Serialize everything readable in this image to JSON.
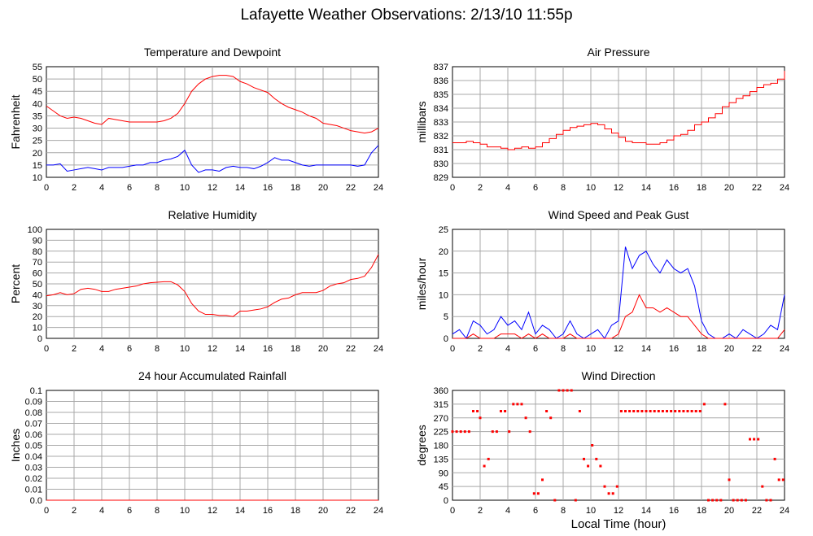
{
  "page": {
    "title": "Lafayette Weather Observations: 2/13/10 11:55p"
  },
  "colors": {
    "primary": "#ff0000",
    "secondary": "#0000ff",
    "grid": "#a8a8a8",
    "frame": "#000000"
  },
  "chart_data": [
    {
      "id": "temp",
      "type": "line",
      "title": "Temperature and Dewpoint",
      "ylabel": "Fahrenheit",
      "xlabel": "",
      "xlim": [
        0,
        24
      ],
      "xticks": [
        "0",
        "2",
        "4",
        "6",
        "8",
        "10",
        "12",
        "14",
        "16",
        "18",
        "20",
        "22",
        "24"
      ],
      "ylim": [
        10,
        55
      ],
      "yticks": [
        "10",
        "15",
        "20",
        "25",
        "30",
        "35",
        "40",
        "45",
        "50",
        "55"
      ],
      "series": [
        {
          "color": "#ff0000",
          "x": [
            0,
            0.5,
            1,
            1.5,
            2,
            2.5,
            3,
            3.5,
            4,
            4.5,
            5,
            5.5,
            6,
            6.5,
            7,
            7.5,
            8,
            8.5,
            9,
            9.5,
            10,
            10.5,
            11,
            11.5,
            12,
            12.5,
            13,
            13.5,
            14,
            14.5,
            15,
            15.5,
            16,
            16.5,
            17,
            17.5,
            18,
            18.5,
            19,
            19.5,
            20,
            20.5,
            21,
            21.5,
            22,
            22.5,
            23,
            23.5,
            24
          ],
          "y": [
            39,
            37,
            35,
            34,
            34.5,
            34,
            33,
            32,
            31.5,
            34,
            33.5,
            33,
            32.5,
            32.5,
            32.5,
            32.5,
            32.5,
            33,
            34,
            36,
            40,
            45,
            48,
            50,
            51,
            51.5,
            51.5,
            51,
            49,
            48,
            46.5,
            45.5,
            44.5,
            42,
            40,
            38.5,
            37.5,
            36.5,
            35,
            34,
            32,
            31.5,
            31,
            30,
            29,
            28.5,
            28,
            28.5,
            30
          ]
        },
        {
          "color": "#0000ff",
          "x": [
            0,
            0.5,
            1,
            1.5,
            2,
            2.5,
            3,
            3.5,
            4,
            4.5,
            5,
            5.5,
            6,
            6.5,
            7,
            7.5,
            8,
            8.5,
            9,
            9.5,
            10,
            10.5,
            11,
            11.5,
            12,
            12.5,
            13,
            13.5,
            14,
            14.5,
            15,
            15.5,
            16,
            16.5,
            17,
            17.5,
            18,
            18.5,
            19,
            19.5,
            20,
            20.5,
            21,
            21.5,
            22,
            22.5,
            23,
            23.5,
            24
          ],
          "y": [
            15,
            15,
            15.5,
            12.5,
            13,
            13.5,
            14,
            13.5,
            13,
            14,
            14,
            14,
            14.5,
            15,
            15,
            16,
            16,
            17,
            17.5,
            18.5,
            21,
            15,
            12,
            13,
            13,
            12.5,
            14,
            14.5,
            14,
            14,
            13.5,
            14.5,
            16,
            18,
            17,
            17,
            16,
            15,
            14.5,
            15,
            15,
            15,
            15,
            15,
            15,
            14.5,
            15,
            20,
            23
          ]
        }
      ]
    },
    {
      "id": "pressure",
      "type": "line",
      "title": "Air Pressure",
      "ylabel": "millibars",
      "xlabel": "",
      "xlim": [
        0,
        24
      ],
      "xticks": [
        "0",
        "2",
        "4",
        "6",
        "8",
        "10",
        "12",
        "14",
        "16",
        "18",
        "20",
        "22",
        "24"
      ],
      "ylim": [
        829,
        837
      ],
      "yticks": [
        "829",
        "830",
        "831",
        "832",
        "833",
        "834",
        "835",
        "836",
        "837"
      ],
      "series": [
        {
          "color": "#ff0000",
          "step": true,
          "x": [
            0,
            1,
            1.5,
            2,
            2.5,
            3,
            3.5,
            4,
            4.5,
            5,
            5.5,
            6,
            6.5,
            7,
            7.5,
            8,
            8.5,
            9,
            9.5,
            10,
            10.5,
            11,
            11.5,
            12,
            12.5,
            13,
            13.5,
            14,
            14.5,
            15,
            15.5,
            16,
            16.5,
            17,
            17.5,
            18,
            18.5,
            19,
            19.5,
            20,
            20.5,
            21,
            21.5,
            22,
            22.5,
            23,
            23.5,
            24
          ],
          "y": [
            831.5,
            831.6,
            831.5,
            831.4,
            831.2,
            831.2,
            831.1,
            831.0,
            831.1,
            831.2,
            831.1,
            831.2,
            831.5,
            831.8,
            832.1,
            832.4,
            832.6,
            832.7,
            832.8,
            832.9,
            832.8,
            832.5,
            832.2,
            831.9,
            831.6,
            831.5,
            831.5,
            831.4,
            831.4,
            831.5,
            831.7,
            832.0,
            832.1,
            832.4,
            832.8,
            833.0,
            833.3,
            833.6,
            834.1,
            834.4,
            834.7,
            834.9,
            835.2,
            835.5,
            835.7,
            835.8,
            836.1,
            836.7
          ]
        }
      ]
    },
    {
      "id": "humidity",
      "type": "line",
      "title": "Relative Humidity",
      "ylabel": "Percent",
      "xlabel": "",
      "xlim": [
        0,
        24
      ],
      "xticks": [
        "0",
        "2",
        "4",
        "6",
        "8",
        "10",
        "12",
        "14",
        "16",
        "18",
        "20",
        "22",
        "24"
      ],
      "ylim": [
        0,
        100
      ],
      "yticks": [
        "0",
        "10",
        "20",
        "30",
        "40",
        "50",
        "60",
        "70",
        "80",
        "90",
        "100"
      ],
      "series": [
        {
          "color": "#ff0000",
          "x": [
            0,
            0.5,
            1,
            1.5,
            2,
            2.5,
            3,
            3.5,
            4,
            4.5,
            5,
            5.5,
            6,
            6.5,
            7,
            7.5,
            8,
            8.5,
            9,
            9.5,
            10,
            10.5,
            11,
            11.5,
            12,
            12.5,
            13,
            13.5,
            14,
            14.5,
            15,
            15.5,
            16,
            16.5,
            17,
            17.5,
            18,
            18.5,
            19,
            19.5,
            20,
            20.5,
            21,
            21.5,
            22,
            22.5,
            23,
            23.5,
            24
          ],
          "y": [
            39,
            40,
            42,
            40,
            41,
            45,
            46,
            45,
            43,
            43,
            45,
            46,
            47,
            48,
            50,
            51,
            51.5,
            52,
            52,
            49,
            43,
            32,
            25,
            22,
            22,
            21,
            21,
            20,
            25,
            25,
            26,
            27,
            29,
            33,
            36,
            37,
            40,
            42,
            42,
            42,
            44,
            48,
            50,
            51,
            54,
            55,
            57,
            65,
            77
          ]
        }
      ]
    },
    {
      "id": "wind",
      "type": "line",
      "title": "Wind Speed and Peak Gust",
      "ylabel": "miles/hour",
      "xlabel": "",
      "xlim": [
        0,
        24
      ],
      "xticks": [
        "0",
        "2",
        "4",
        "6",
        "8",
        "10",
        "12",
        "14",
        "16",
        "18",
        "20",
        "22",
        "24"
      ],
      "ylim": [
        0,
        25
      ],
      "yticks": [
        "0",
        "5",
        "10",
        "15",
        "20",
        "25"
      ],
      "series": [
        {
          "color": "#0000ff",
          "x": [
            0,
            0.5,
            1,
            1.5,
            2,
            2.5,
            3,
            3.5,
            4,
            4.5,
            5,
            5.5,
            6,
            6.5,
            7,
            7.5,
            8,
            8.5,
            9,
            9.5,
            10,
            10.5,
            11,
            11.5,
            12,
            12.5,
            13,
            13.5,
            14,
            14.5,
            15,
            15.5,
            16,
            16.5,
            17,
            17.5,
            18,
            18.5,
            19,
            19.5,
            20,
            20.5,
            21,
            21.5,
            22,
            22.5,
            23,
            23.5,
            24
          ],
          "y": [
            1,
            2,
            0,
            4,
            3,
            1,
            2,
            5,
            3,
            4,
            2,
            6,
            1,
            3,
            2,
            0,
            1,
            4,
            1,
            0,
            1,
            2,
            0,
            3,
            4,
            21,
            16,
            19,
            20,
            17,
            15,
            18,
            16,
            15,
            16,
            12,
            4,
            1,
            0,
            0,
            1,
            0,
            2,
            1,
            0,
            1,
            3,
            2,
            10
          ]
        },
        {
          "color": "#ff0000",
          "x": [
            0,
            0.5,
            1,
            1.5,
            2,
            2.5,
            3,
            3.5,
            4,
            4.5,
            5,
            5.5,
            6,
            6.5,
            7,
            7.5,
            8,
            8.5,
            9,
            9.5,
            10,
            10.5,
            11,
            11.5,
            12,
            12.5,
            13,
            13.5,
            14,
            14.5,
            15,
            15.5,
            16,
            16.5,
            17,
            17.5,
            18,
            18.5,
            19,
            19.5,
            20,
            20.5,
            21,
            21.5,
            22,
            22.5,
            23,
            23.5,
            24
          ],
          "y": [
            0,
            0,
            0,
            1,
            0,
            0,
            0,
            1,
            1,
            1,
            0,
            1,
            0,
            1,
            0,
            0,
            0,
            1,
            0,
            0,
            0,
            0,
            0,
            0,
            1,
            5,
            6,
            10,
            7,
            7,
            6,
            7,
            6,
            5,
            5,
            3,
            1,
            0,
            0,
            0,
            0,
            0,
            0,
            0,
            0,
            0,
            0,
            0,
            2
          ]
        }
      ]
    },
    {
      "id": "rain",
      "type": "line",
      "title": "24 hour Accumulated Rainfall",
      "ylabel": "Inches",
      "xlabel": "",
      "xlim": [
        0,
        24
      ],
      "xticks": [
        "0",
        "2",
        "4",
        "6",
        "8",
        "10",
        "12",
        "14",
        "16",
        "18",
        "20",
        "22",
        "24"
      ],
      "ylim": [
        0,
        0.1
      ],
      "yticks": [
        "0.0",
        "0.01",
        "0.02",
        "0.03",
        "0.04",
        "0.05",
        "0.06",
        "0.07",
        "0.08",
        "0.09",
        "0.1"
      ],
      "series": [
        {
          "color": "#ff0000",
          "x": [
            0,
            24
          ],
          "y": [
            0,
            0
          ]
        }
      ]
    },
    {
      "id": "direction",
      "type": "scatter",
      "title": "Wind Direction",
      "ylabel": "degrees",
      "xlabel": "Local Time (hour)",
      "xlim": [
        0,
        24
      ],
      "xticks": [
        "0",
        "2",
        "4",
        "6",
        "8",
        "10",
        "12",
        "14",
        "16",
        "18",
        "20",
        "22",
        "24"
      ],
      "ylim": [
        0,
        360
      ],
      "yticks": [
        "0",
        "45",
        "90",
        "135",
        "180",
        "225",
        "270",
        "315",
        "360"
      ],
      "series": [
        {
          "color": "#ff0000",
          "x": [
            0,
            0.3,
            0.6,
            0.9,
            1.2,
            1.5,
            1.8,
            2.0,
            2.3,
            2.6,
            2.9,
            3.2,
            3.5,
            3.8,
            4.1,
            4.4,
            4.7,
            5.0,
            5.3,
            5.6,
            5.9,
            6.2,
            6.5,
            6.8,
            7.1,
            7.4,
            7.7,
            8.0,
            8.3,
            8.6,
            8.9,
            9.2,
            9.5,
            9.8,
            10.1,
            10.4,
            10.7,
            11.0,
            11.3,
            11.6,
            11.9,
            12.2,
            12.5,
            12.8,
            13.1,
            13.4,
            13.7,
            14.0,
            14.3,
            14.6,
            14.9,
            15.2,
            15.5,
            15.8,
            16.1,
            16.4,
            16.7,
            17.0,
            17.3,
            17.6,
            17.9,
            18.2,
            18.5,
            18.8,
            19.1,
            19.4,
            19.7,
            20.0,
            20.3,
            20.6,
            20.9,
            21.2,
            21.5,
            21.8,
            22.1,
            22.4,
            22.7,
            23.0,
            23.3,
            23.6,
            23.9
          ],
          "y": [
            225,
            225,
            225,
            225,
            225,
            292,
            292,
            270,
            112,
            135,
            225,
            225,
            292,
            292,
            225,
            315,
            315,
            315,
            270,
            225,
            22,
            22,
            67,
            292,
            270,
            0,
            360,
            360,
            360,
            360,
            0,
            292,
            135,
            112,
            180,
            135,
            112,
            45,
            22,
            22,
            45,
            292,
            292,
            292,
            292,
            292,
            292,
            292,
            292,
            292,
            292,
            292,
            292,
            292,
            292,
            292,
            292,
            292,
            292,
            292,
            292,
            315,
            0,
            0,
            0,
            0,
            315,
            67,
            0,
            0,
            0,
            0,
            200,
            200,
            200,
            45,
            0,
            0,
            135,
            67,
            67
          ]
        }
      ]
    }
  ]
}
